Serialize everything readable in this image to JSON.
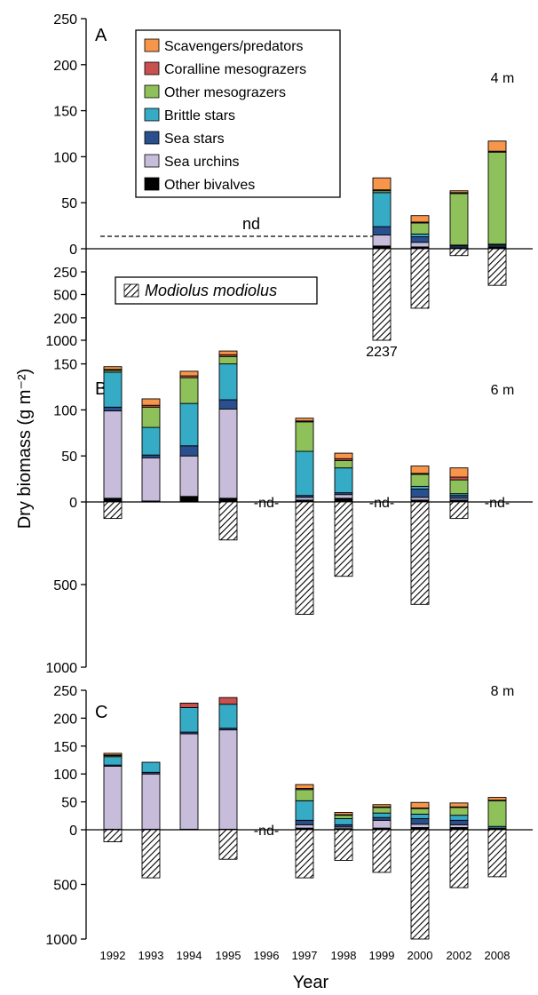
{
  "chart_data": {
    "type": "bar",
    "ylabel": "Dry biomass (g m⁻²)",
    "xlabel": "Year",
    "categories": [
      "1992",
      "1993",
      "1994",
      "1995",
      "1996",
      "1997",
      "1998",
      "1999",
      "2000",
      "2002",
      "2008"
    ],
    "positive_axis": {
      "ylim": [
        0,
        250
      ],
      "ticks": [
        "0",
        "50",
        "100",
        "150",
        "200",
        "250"
      ]
    },
    "negative_axis": {
      "ylim": [
        0,
        1000
      ],
      "ticks": [
        "500",
        "1000"
      ]
    },
    "legend": {
      "placement": "top-left",
      "entries": [
        {
          "name": "Scavengers/predators",
          "color": "#f7964a"
        },
        {
          "name": "Coralline mesograzers",
          "color": "#c8504f"
        },
        {
          "name": "Other mesograzers",
          "color": "#8fc15a"
        },
        {
          "name": "Brittle stars",
          "color": "#36abc6"
        },
        {
          "name": "Sea stars",
          "color": "#2a4f8e"
        },
        {
          "name": "Sea urchins",
          "color": "#c7bddb"
        },
        {
          "name": "Other bivalves",
          "color": "#000000"
        }
      ],
      "modiolus": {
        "name": "Modiolus modiolus",
        "pattern": "hatched"
      }
    },
    "stack_order": [
      "Other bivalves",
      "Sea urchins",
      "Sea stars",
      "Brittle stars",
      "Other mesograzers",
      "Coralline mesograzers",
      "Scavengers/predators"
    ],
    "panels": [
      {
        "label": "A",
        "depth": "4 m",
        "nd_label": "nd",
        "nd_years": [
          "1992",
          "1993",
          "1994",
          "1995",
          "1996",
          "1997",
          "1998"
        ],
        "cut_annotation": {
          "year": "1999",
          "text": "2237"
        },
        "stacks": {
          "1999": [
            3,
            12,
            9,
            37,
            2,
            1,
            13
          ],
          "2000": [
            2,
            5,
            6,
            3,
            12,
            1,
            7
          ],
          "2002": [
            1,
            0,
            2,
            1,
            56,
            1,
            2
          ],
          "2008": [
            2,
            0,
            2,
            1,
            100,
            1,
            11
          ]
        },
        "modiolus": {
          "1999": 2237,
          "2000": 650,
          "2002": 75,
          "2008": 400
        }
      },
      {
        "label": "B",
        "depth": "6 m",
        "nd_label": "-nd-",
        "nd_years": [
          "1996",
          "1999",
          "2008"
        ],
        "stacks": {
          "1992": [
            4,
            95,
            4,
            38,
            2,
            1,
            3
          ],
          "1993": [
            1,
            47,
            3,
            30,
            22,
            2,
            7
          ],
          "1994": [
            6,
            44,
            11,
            46,
            28,
            2,
            5
          ],
          "1995": [
            4,
            97,
            10,
            39,
            8,
            2,
            4
          ],
          "1997": [
            2,
            3,
            2,
            48,
            32,
            1,
            3
          ],
          "1998": [
            4,
            4,
            2,
            27,
            8,
            2,
            6
          ],
          "2000": [
            2,
            3,
            9,
            3,
            13,
            1,
            8
          ],
          "2002": [
            2,
            2,
            3,
            2,
            15,
            3,
            10
          ]
        },
        "modiolus": {
          "1992": 100,
          "1995": 230,
          "1997": 680,
          "1998": 450,
          "2000": 620,
          "2002": 100
        }
      },
      {
        "label": "C",
        "depth": "8 m",
        "nd_label": "-nd-",
        "nd_years": [
          "1996"
        ],
        "stacks": {
          "1992": [
            1,
            113,
            2,
            15,
            2,
            1,
            3
          ],
          "1993": [
            1,
            99,
            3,
            18,
            0,
            0,
            0
          ],
          "1994": [
            1,
            171,
            3,
            44,
            0,
            8,
            0
          ],
          "1995": [
            1,
            178,
            3,
            43,
            0,
            12,
            0
          ],
          "1997": [
            3,
            6,
            8,
            35,
            20,
            2,
            7
          ],
          "1998": [
            2,
            3,
            4,
            11,
            6,
            1,
            4
          ],
          "1999": [
            3,
            14,
            5,
            8,
            10,
            1,
            4
          ],
          "2000": [
            4,
            6,
            10,
            8,
            10,
            1,
            10
          ],
          "2002": [
            4,
            5,
            8,
            9,
            14,
            1,
            7
          ],
          "2008": [
            1,
            1,
            1,
            3,
            46,
            1,
            5
          ]
        },
        "modiolus": {
          "1992": 110,
          "1993": 440,
          "1995": 270,
          "1997": 440,
          "1998": 280,
          "1999": 390,
          "2000": 1000,
          "2002": 530,
          "2008": 430
        }
      }
    ]
  }
}
